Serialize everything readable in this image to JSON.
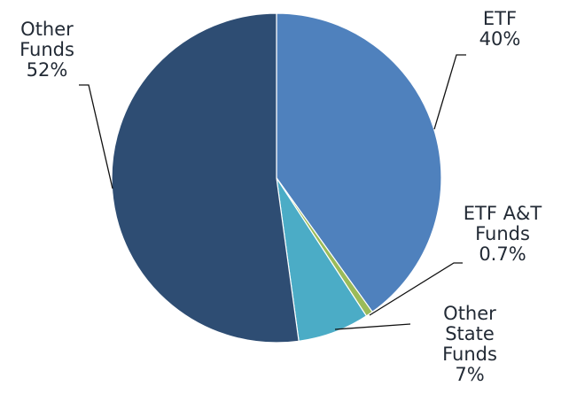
{
  "chart_data": {
    "type": "pie",
    "title": "",
    "start_angle_deg": 0,
    "direction": "clockwise",
    "slices": [
      {
        "name": "ETF",
        "value": 40,
        "value_label": "40%",
        "color": "#4f81bd",
        "label_lines": [
          "ETF",
          "40%"
        ]
      },
      {
        "name": "ETF A&T Funds",
        "value": 0.7,
        "value_label": "0.7%",
        "color": "#9bbb59",
        "label_lines": [
          "ETF A&T",
          "Funds",
          "0.7%"
        ]
      },
      {
        "name": "Other State Funds",
        "value": 7,
        "value_label": "7%",
        "color": "#4bacc6",
        "label_lines": [
          "Other",
          "State",
          "Funds",
          "7%"
        ]
      },
      {
        "name": "Other Funds",
        "value": 52,
        "value_label": "52%",
        "color": "#2e4d73",
        "label_lines": [
          "Other",
          "Funds",
          "52%"
        ]
      }
    ]
  }
}
